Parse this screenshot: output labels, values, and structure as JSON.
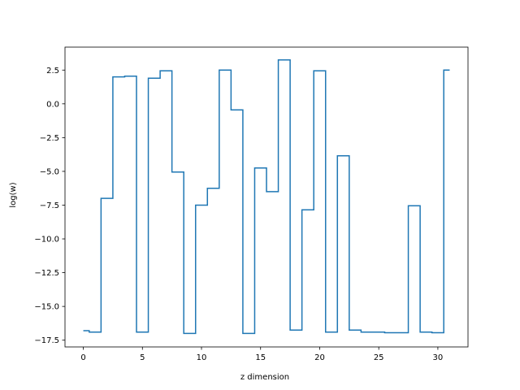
{
  "chart_data": {
    "type": "line",
    "drawstyle": "steps-mid",
    "title": "",
    "xlabel": "z dimension",
    "ylabel": "log(w)",
    "xlim": [
      -1.55,
      32.55
    ],
    "ylim": [
      -18.0,
      4.2
    ],
    "grid": false,
    "legend": "none",
    "x_ticks": [
      0,
      5,
      10,
      15,
      20,
      25,
      30
    ],
    "x_tick_labels": [
      "0",
      "5",
      "10",
      "15",
      "20",
      "25",
      "30"
    ],
    "y_ticks": [
      2.5,
      0.0,
      -2.5,
      -5.0,
      -7.5,
      -10.0,
      -12.5,
      -15.0,
      -17.5
    ],
    "y_tick_labels": [
      "2.5",
      "0.0",
      "−2.5",
      "−5.0",
      "−7.5",
      "−10.0",
      "−12.5",
      "−15.0",
      "−17.5"
    ],
    "series": [
      {
        "color": "#1f77b4",
        "x": [
          0,
          1,
          2,
          3,
          4,
          5,
          6,
          7,
          8,
          9,
          10,
          11,
          12,
          13,
          14,
          15,
          16,
          17,
          18,
          19,
          20,
          21,
          22,
          23,
          24,
          25,
          26,
          27,
          28,
          29,
          30,
          31
        ],
        "values": [
          -16.8,
          -16.9,
          -7.0,
          2.0,
          2.05,
          -16.9,
          1.9,
          2.45,
          -5.05,
          -17.0,
          -7.5,
          -6.25,
          2.5,
          -0.45,
          -17.0,
          -4.75,
          -6.5,
          3.25,
          -16.75,
          -7.85,
          2.45,
          -16.9,
          -3.85,
          -16.75,
          -16.9,
          -16.9,
          -16.95,
          -16.95,
          -7.55,
          -16.9,
          -16.95,
          2.5
        ]
      }
    ]
  }
}
